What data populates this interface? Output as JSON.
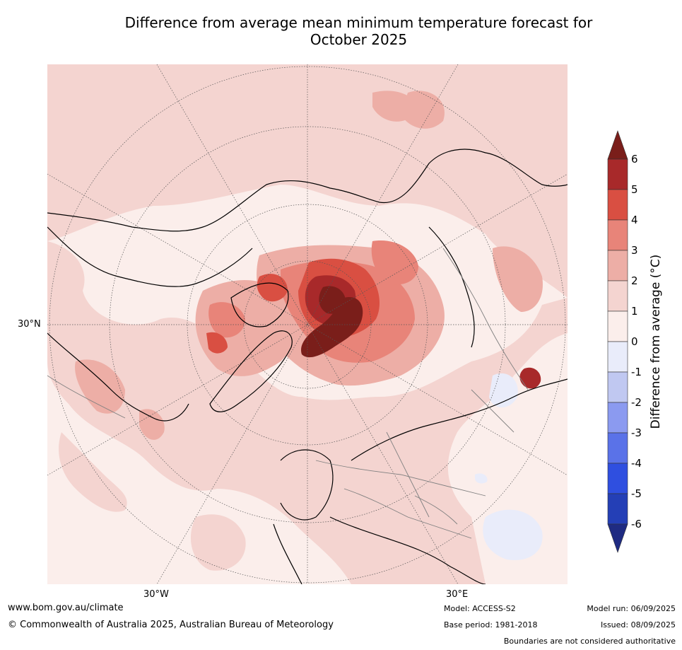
{
  "title_line1": "Difference from average mean minimum temperature forecast for",
  "title_line2": "October 2025",
  "map": {
    "projection": "north-polar-stereographic",
    "lat_labels": [
      "30°N"
    ],
    "lon_labels": [
      "30°W",
      "30°E"
    ],
    "colors": {
      "background_anomaly": "#fbe9e6",
      "land_outline": "#000000",
      "border_outline": "#808080",
      "grid": "#555555"
    }
  },
  "colorbar": {
    "label": "Difference from average (°C)",
    "ticks": [
      "6",
      "5",
      "4",
      "3",
      "2",
      "1",
      "0",
      "-1",
      "-2",
      "-3",
      "-4",
      "-5",
      "-6"
    ],
    "bins": [
      {
        "range": ">6",
        "color": "#7a1e1a"
      },
      {
        "range": "5 to 6",
        "color": "#a8292a"
      },
      {
        "range": "4 to 5",
        "color": "#d94f42"
      },
      {
        "range": "3 to 4",
        "color": "#e88479"
      },
      {
        "range": "2 to 3",
        "color": "#edaea6"
      },
      {
        "range": "1 to 2",
        "color": "#f4d4d0"
      },
      {
        "range": "0 to 1",
        "color": "#fbeeeb"
      },
      {
        "range": "-1 to 0",
        "color": "#e9ecfa"
      },
      {
        "range": "-2 to -1",
        "color": "#c0c8f1"
      },
      {
        "range": "-3 to -2",
        "color": "#8b9af0"
      },
      {
        "range": "-4 to -3",
        "color": "#5a72e8"
      },
      {
        "range": "-5 to -4",
        "color": "#2f4fe0"
      },
      {
        "range": "-6 to -5",
        "color": "#243fb6"
      },
      {
        "range": "<-6",
        "color": "#1f2b82"
      }
    ]
  },
  "footer": {
    "website": "www.bom.gov.au/climate",
    "copyright": "© Commonwealth of Australia 2025, Australian Bureau of Meteorology",
    "model": "Model: ACCESS-S2",
    "base_period": "Base period: 1981-2018",
    "model_run": "Model run: 06/09/2025",
    "issued": "Issued: 08/09/2025",
    "disclaimer": "Boundaries are not considered authoritative"
  }
}
